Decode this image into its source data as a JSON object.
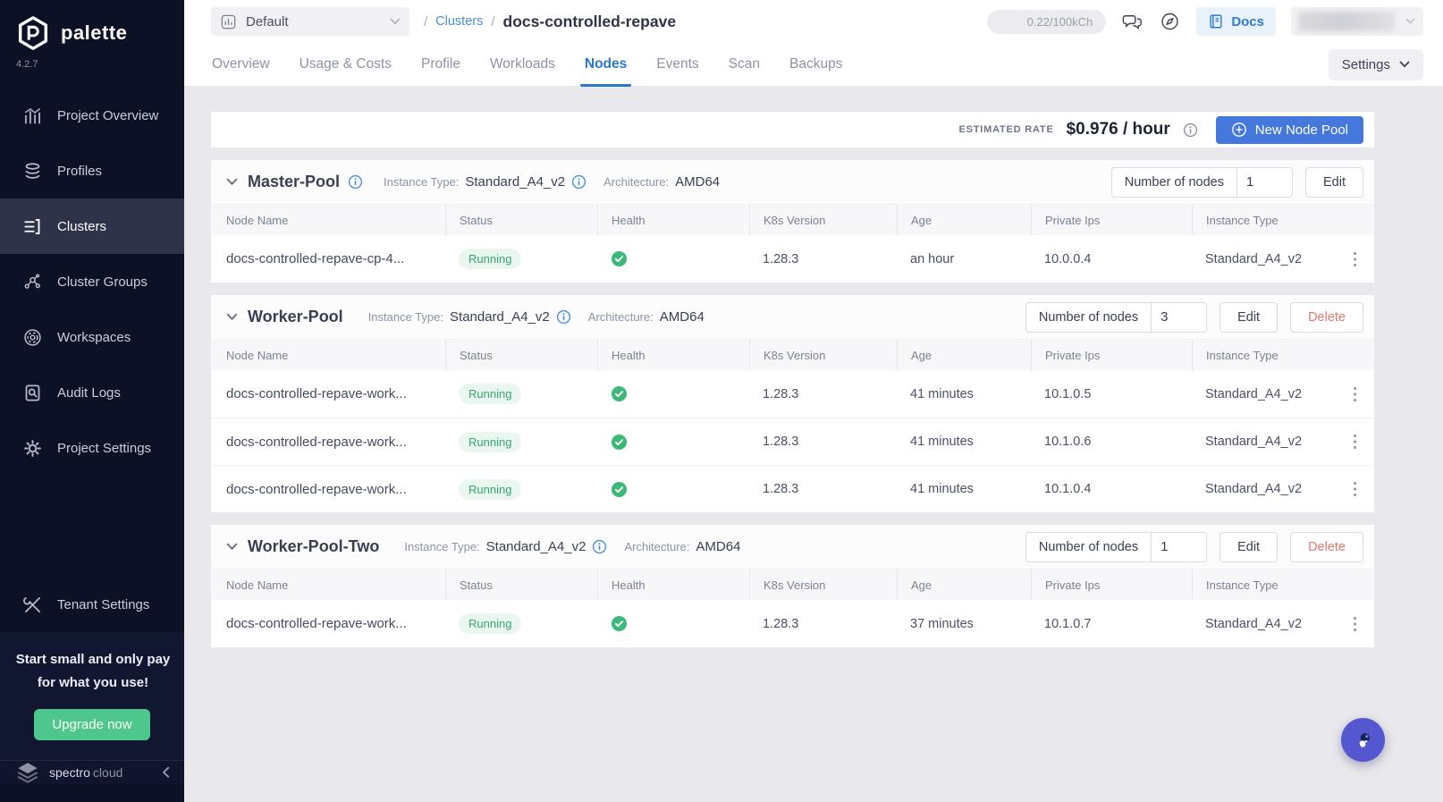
{
  "sidebar": {
    "brand": "palette",
    "version": "4.2.7",
    "items": [
      {
        "label": "Project Overview",
        "icon": "chart",
        "active": false
      },
      {
        "label": "Profiles",
        "icon": "profiles",
        "active": false
      },
      {
        "label": "Clusters",
        "icon": "clusters",
        "active": true
      },
      {
        "label": "Cluster Groups",
        "icon": "cluster-groups",
        "active": false
      },
      {
        "label": "Workspaces",
        "icon": "workspaces",
        "active": false
      },
      {
        "label": "Audit Logs",
        "icon": "audit-logs",
        "active": false
      },
      {
        "label": "Project Settings",
        "icon": "gear",
        "active": false
      },
      {
        "label": "Tenant Settings",
        "icon": "tools",
        "active": false,
        "gap_before": true
      }
    ],
    "upgrade": {
      "message": "Start small and only pay for what you use!",
      "button": "Upgrade now"
    },
    "footer": {
      "brand_primary": "spectro",
      "brand_secondary": "cloud"
    }
  },
  "topbar": {
    "project_selector": {
      "label": "Default",
      "icon": "mini-chart"
    },
    "breadcrumb": {
      "separator": "/",
      "link": "Clusters",
      "current": "docs-controlled-repave"
    },
    "usage_badge": "0.22/100kCh",
    "docs_button": "Docs"
  },
  "tabs": {
    "items": [
      "Overview",
      "Usage & Costs",
      "Profile",
      "Workloads",
      "Nodes",
      "Events",
      "Scan",
      "Backups"
    ],
    "active_index": 4,
    "settings_button": "Settings"
  },
  "rate_bar": {
    "label": "ESTIMATED RATE",
    "value": "$0.976 / hour",
    "new_node_pool_button": "New Node Pool"
  },
  "node_table": {
    "headers": [
      "Node Name",
      "Status",
      "Health",
      "K8s Version",
      "Age",
      "Private Ips",
      "Instance Type"
    ]
  },
  "pools": [
    {
      "name": "Master-Pool",
      "name_info": true,
      "instance_type_label": "Instance Type:",
      "instance_type": "Standard_A4_v2",
      "architecture_label": "Architecture:",
      "architecture": "AMD64",
      "nodes_label": "Number of nodes",
      "nodes_count": "1",
      "edit_button": "Edit",
      "delete_button": null,
      "rows": [
        {
          "name": "docs-controlled-repave-cp-4...",
          "status": "Running",
          "k8s_version": "1.28.3",
          "age": "an hour",
          "private_ip": "10.0.0.4",
          "instance_type": "Standard_A4_v2"
        }
      ]
    },
    {
      "name": "Worker-Pool",
      "name_info": false,
      "instance_type_label": "Instance Type:",
      "instance_type": "Standard_A4_v2",
      "architecture_label": "Architecture:",
      "architecture": "AMD64",
      "nodes_label": "Number of nodes",
      "nodes_count": "3",
      "edit_button": "Edit",
      "delete_button": "Delete",
      "rows": [
        {
          "name": "docs-controlled-repave-work...",
          "status": "Running",
          "k8s_version": "1.28.3",
          "age": "41 minutes",
          "private_ip": "10.1.0.5",
          "instance_type": "Standard_A4_v2"
        },
        {
          "name": "docs-controlled-repave-work...",
          "status": "Running",
          "k8s_version": "1.28.3",
          "age": "41 minutes",
          "private_ip": "10.1.0.6",
          "instance_type": "Standard_A4_v2"
        },
        {
          "name": "docs-controlled-repave-work...",
          "status": "Running",
          "k8s_version": "1.28.3",
          "age": "41 minutes",
          "private_ip": "10.1.0.4",
          "instance_type": "Standard_A4_v2"
        }
      ]
    },
    {
      "name": "Worker-Pool-Two",
      "name_info": false,
      "instance_type_label": "Instance Type:",
      "instance_type": "Standard_A4_v2",
      "architecture_label": "Architecture:",
      "architecture": "AMD64",
      "nodes_label": "Number of nodes",
      "nodes_count": "1",
      "edit_button": "Edit",
      "delete_button": "Delete",
      "rows": [
        {
          "name": "docs-controlled-repave-work...",
          "status": "Running",
          "k8s_version": "1.28.3",
          "age": "37 minutes",
          "private_ip": "10.1.0.7",
          "instance_type": "Standard_A4_v2"
        }
      ]
    }
  ],
  "colors": {
    "brand_navy": "#0d1126",
    "accent_blue": "#2a77d0",
    "button_blue": "#4478dd",
    "status_green": "#36a471",
    "health_green": "#3cb878",
    "upgrade_green": "#4dc78c",
    "delete_red": "#df7a70",
    "fab_purple": "#5557d0"
  }
}
